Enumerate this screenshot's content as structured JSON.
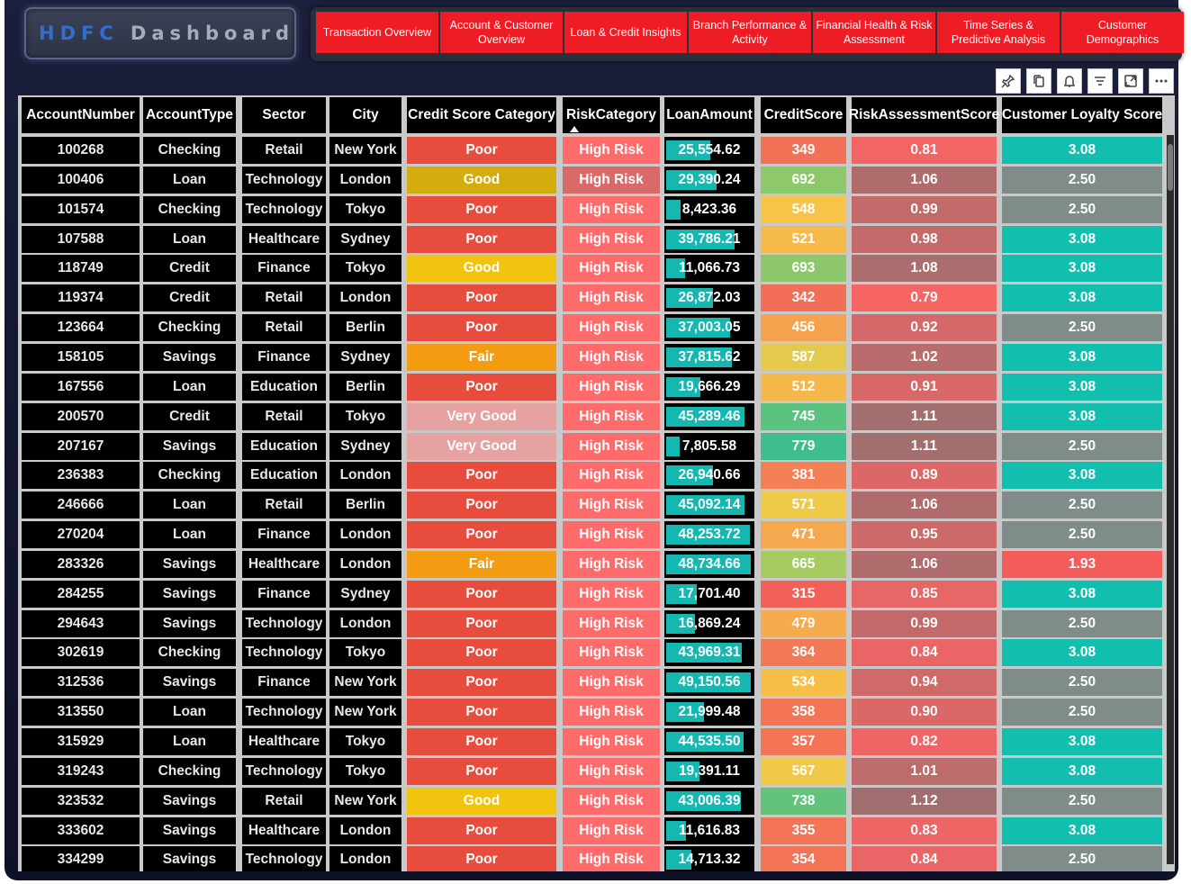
{
  "logo": {
    "part1": "HDFC",
    "part2": "Dashboard"
  },
  "nav": [
    "Transaction Overview",
    "Account & Customer Overview",
    "Loan & Credit Insights",
    "Branch Performance & Activity",
    "Financial Health & Risk Assessment",
    "Time Series & Predictive Analysis",
    "Customer Demographics"
  ],
  "toolbar": [
    "pin-icon",
    "copy-icon",
    "bell-icon",
    "filter-icon",
    "expand-icon",
    "more-icon"
  ],
  "colors": {
    "nav_red": "#ee1c25",
    "poor": "#e74c3c",
    "good_dark": "#d4ac0d",
    "good": "#f1c40f",
    "fair": "#f39c12",
    "very_good": "#e6a1a1",
    "high_risk": "#ff6b6b",
    "high_risk_dim": "#d96a6a",
    "loan_bar": "#14b8b0",
    "loyalty_high": "#12bfae",
    "loyalty_mid": "#7f8c8a",
    "loyalty_low": "#f45b5b"
  },
  "table": {
    "columns": [
      "AccountNumber",
      "AccountType",
      "Sector",
      "City",
      "Credit Score Category",
      "RiskCategory",
      "LoanAmount",
      "CreditScore",
      "RiskAssessmentScore",
      "Customer Loyalty Score"
    ],
    "sorted_column": "RiskCategory",
    "rows": [
      [
        "100268",
        "Checking",
        "Retail",
        "New York",
        "Poor",
        "High Risk",
        "25,554.62",
        "349",
        "0.81",
        "3.08"
      ],
      [
        "100406",
        "Loan",
        "Technology",
        "London",
        "Good",
        "High Risk",
        "29,390.24",
        "692",
        "1.06",
        "2.50"
      ],
      [
        "101574",
        "Checking",
        "Technology",
        "Tokyo",
        "Poor",
        "High Risk",
        "8,423.36",
        "548",
        "0.99",
        "2.50"
      ],
      [
        "107588",
        "Loan",
        "Healthcare",
        "Sydney",
        "Poor",
        "High Risk",
        "39,786.21",
        "521",
        "0.98",
        "3.08"
      ],
      [
        "118749",
        "Credit",
        "Finance",
        "Tokyo",
        "Good",
        "High Risk",
        "11,066.73",
        "693",
        "1.08",
        "3.08"
      ],
      [
        "119374",
        "Credit",
        "Retail",
        "London",
        "Poor",
        "High Risk",
        "26,872.03",
        "342",
        "0.79",
        "3.08"
      ],
      [
        "123664",
        "Checking",
        "Retail",
        "Berlin",
        "Poor",
        "High Risk",
        "37,003.05",
        "456",
        "0.92",
        "2.50"
      ],
      [
        "158105",
        "Savings",
        "Finance",
        "Sydney",
        "Fair",
        "High Risk",
        "37,815.62",
        "587",
        "1.02",
        "3.08"
      ],
      [
        "167556",
        "Loan",
        "Education",
        "Berlin",
        "Poor",
        "High Risk",
        "19,666.29",
        "512",
        "0.91",
        "3.08"
      ],
      [
        "200570",
        "Credit",
        "Retail",
        "Tokyo",
        "Very Good",
        "High Risk",
        "45,289.46",
        "745",
        "1.11",
        "3.08"
      ],
      [
        "207167",
        "Savings",
        "Education",
        "Sydney",
        "Very Good",
        "High Risk",
        "7,805.58",
        "779",
        "1.11",
        "2.50"
      ],
      [
        "236383",
        "Checking",
        "Education",
        "London",
        "Poor",
        "High Risk",
        "26,940.66",
        "381",
        "0.89",
        "3.08"
      ],
      [
        "246666",
        "Loan",
        "Retail",
        "Berlin",
        "Poor",
        "High Risk",
        "45,092.14",
        "571",
        "1.06",
        "2.50"
      ],
      [
        "270204",
        "Loan",
        "Finance",
        "London",
        "Poor",
        "High Risk",
        "48,253.72",
        "471",
        "0.95",
        "2.50"
      ],
      [
        "283326",
        "Savings",
        "Healthcare",
        "London",
        "Fair",
        "High Risk",
        "48,734.66",
        "665",
        "1.06",
        "1.93"
      ],
      [
        "284255",
        "Savings",
        "Finance",
        "Sydney",
        "Poor",
        "High Risk",
        "17,701.40",
        "315",
        "0.85",
        "3.08"
      ],
      [
        "294643",
        "Savings",
        "Technology",
        "London",
        "Poor",
        "High Risk",
        "16,869.24",
        "479",
        "0.99",
        "2.50"
      ],
      [
        "302619",
        "Checking",
        "Technology",
        "Tokyo",
        "Poor",
        "High Risk",
        "43,969.31",
        "364",
        "0.84",
        "3.08"
      ],
      [
        "312536",
        "Savings",
        "Finance",
        "New York",
        "Poor",
        "High Risk",
        "49,150.56",
        "534",
        "0.94",
        "2.50"
      ],
      [
        "313550",
        "Loan",
        "Technology",
        "New York",
        "Poor",
        "High Risk",
        "21,999.48",
        "358",
        "0.90",
        "2.50"
      ],
      [
        "315929",
        "Loan",
        "Healthcare",
        "Tokyo",
        "Poor",
        "High Risk",
        "44,535.50",
        "357",
        "0.82",
        "3.08"
      ],
      [
        "319243",
        "Checking",
        "Technology",
        "Tokyo",
        "Poor",
        "High Risk",
        "19,391.11",
        "567",
        "1.01",
        "3.08"
      ],
      [
        "323532",
        "Savings",
        "Retail",
        "New York",
        "Good",
        "High Risk",
        "43,006.39",
        "738",
        "1.12",
        "2.50"
      ],
      [
        "333602",
        "Savings",
        "Healthcare",
        "London",
        "Poor",
        "High Risk",
        "11,616.83",
        "355",
        "0.83",
        "3.08"
      ],
      [
        "334299",
        "Savings",
        "Technology",
        "London",
        "Poor",
        "High Risk",
        "14,713.32",
        "354",
        "0.84",
        "2.50"
      ]
    ]
  }
}
